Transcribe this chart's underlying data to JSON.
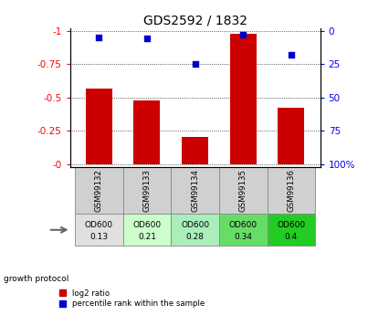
{
  "title": "GDS2592 / 1832",
  "samples": [
    "GSM99132",
    "GSM99133",
    "GSM99134",
    "GSM99135",
    "GSM99136"
  ],
  "log2_ratio": [
    -0.57,
    -0.48,
    -0.2,
    -0.98,
    -0.42
  ],
  "percentile": [
    5.0,
    5.5,
    25.0,
    2.5,
    18.0
  ],
  "bar_color": "#cc0000",
  "percentile_color": "#0000cc",
  "growth_protocol_label": "growth protocol",
  "od_labels_line1": [
    "OD600",
    "OD600",
    "OD600",
    "OD600",
    "OD600"
  ],
  "od_labels_line2": [
    "0.13",
    "0.21",
    "0.28",
    "0.34",
    "0.4"
  ],
  "od_colors": [
    "#e0e0e0",
    "#ccffcc",
    "#aaeebb",
    "#66dd66",
    "#22cc22"
  ],
  "legend_log2": "log2 ratio",
  "legend_pct": "percentile rank within the sample",
  "title_fontsize": 10,
  "tick_fontsize": 7.5,
  "label_fontsize": 7
}
